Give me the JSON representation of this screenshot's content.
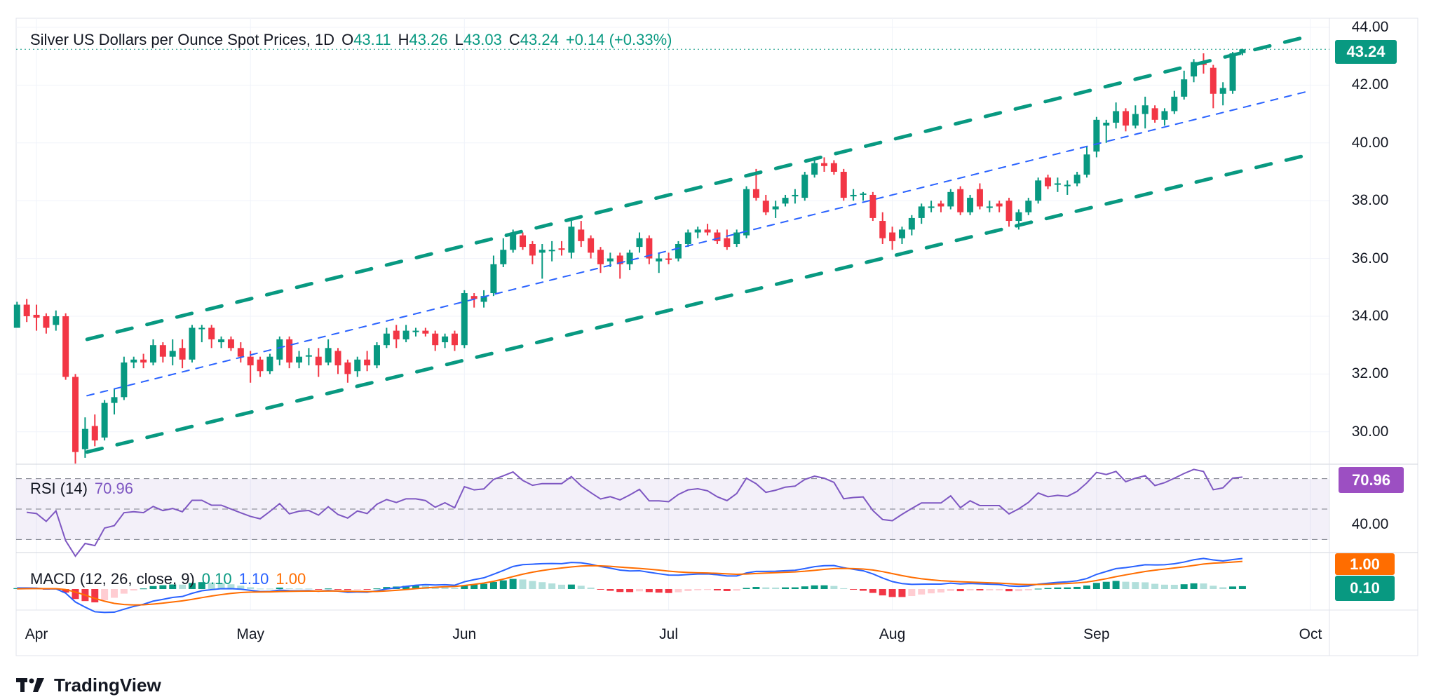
{
  "header": {
    "title": "Silver US Dollars per Ounce Spot Prices, 1D",
    "open_label": "O",
    "open": "43.11",
    "high_label": "H",
    "high": "43.26",
    "low_label": "L",
    "low": "43.03",
    "close_label": "C",
    "close": "43.24",
    "change": "+0.14 (+0.33%)"
  },
  "rsi_legend": {
    "label": "RSI (14)",
    "value": "70.96"
  },
  "macd_legend": {
    "label": "MACD (12, 26, close, 9)",
    "hist": "0.10",
    "macd": "1.10",
    "signal": "1.00"
  },
  "badges": {
    "price": "43.24",
    "rsi": "70.96",
    "signal": "1.00",
    "hist": "0.10"
  },
  "logo_text": "TradingView",
  "colors": {
    "up": "#089981",
    "down": "#f23645",
    "rsi": "#7e57c2",
    "rsi_badge": "#9c4fc2",
    "macd": "#2962ff",
    "signal": "#ff6d00",
    "channel": "#089981",
    "midline": "#2962ff"
  },
  "chart_data": {
    "type": "candlestick",
    "title": "Silver US Dollars per Ounce Spot Prices, 1D",
    "price_ticks": [
      "44.00",
      "42.00",
      "40.00",
      "38.00",
      "36.00",
      "34.00",
      "32.00",
      "30.00"
    ],
    "ylim": [
      29,
      44.5
    ],
    "grid": true,
    "rsi_tick": "40.00",
    "rsi_levels": [
      70,
      50,
      30
    ],
    "time_ticks": [
      {
        "label": "Apr",
        "bar": 2
      },
      {
        "label": "May",
        "bar": 24
      },
      {
        "label": "Jun",
        "bar": 46
      },
      {
        "label": "Jul",
        "bar": 67
      },
      {
        "label": "Aug",
        "bar": 90
      },
      {
        "label": "Sep",
        "bar": 111
      },
      {
        "label": "Oct",
        "bar": 133
      }
    ],
    "channel": {
      "upper": [
        [
          7.2,
          33.2
        ],
        [
          132.9,
          43.7
        ]
      ],
      "middle": [
        [
          7.2,
          31.25
        ],
        [
          132.9,
          41.8
        ]
      ],
      "lower": [
        [
          7.2,
          29.3
        ],
        [
          132.9,
          39.6
        ]
      ]
    },
    "ohlc_fields": [
      "open",
      "high",
      "low",
      "close"
    ],
    "candles": [
      [
        33.6,
        34.5,
        33.6,
        34.4
      ],
      [
        34.4,
        34.6,
        33.8,
        34.0
      ],
      [
        34.05,
        34.4,
        33.5,
        33.95
      ],
      [
        34.0,
        34.1,
        33.4,
        33.6
      ],
      [
        33.7,
        34.2,
        33.5,
        34.0
      ],
      [
        34.0,
        34.1,
        31.8,
        31.9
      ],
      [
        31.9,
        32.0,
        28.9,
        29.3
      ],
      [
        29.4,
        30.5,
        29.1,
        30.1
      ],
      [
        30.2,
        30.6,
        29.5,
        29.7
      ],
      [
        29.8,
        31.1,
        29.7,
        31.0
      ],
      [
        31.0,
        31.5,
        30.6,
        31.2
      ],
      [
        31.2,
        32.6,
        31.1,
        32.4
      ],
      [
        32.4,
        32.6,
        32.2,
        32.5
      ],
      [
        32.5,
        32.7,
        32.2,
        32.4
      ],
      [
        32.4,
        33.2,
        32.3,
        33.0
      ],
      [
        33.0,
        33.1,
        32.4,
        32.6
      ],
      [
        32.6,
        33.2,
        32.3,
        32.8
      ],
      [
        32.9,
        33.2,
        32.2,
        32.5
      ],
      [
        32.5,
        33.7,
        32.4,
        33.6
      ],
      [
        33.55,
        33.7,
        33.1,
        33.6
      ],
      [
        33.6,
        33.7,
        32.9,
        33.2
      ],
      [
        33.1,
        33.3,
        32.9,
        33.2
      ],
      [
        33.2,
        33.3,
        32.8,
        32.9
      ],
      [
        32.9,
        33.1,
        32.4,
        32.6
      ],
      [
        32.6,
        32.8,
        31.7,
        32.3
      ],
      [
        32.5,
        32.6,
        31.9,
        32.1
      ],
      [
        32.1,
        32.7,
        32.0,
        32.6
      ],
      [
        32.5,
        33.3,
        32.3,
        33.2
      ],
      [
        33.2,
        33.3,
        32.2,
        32.4
      ],
      [
        32.4,
        32.8,
        32.2,
        32.6
      ],
      [
        32.6,
        32.9,
        32.3,
        32.65
      ],
      [
        32.6,
        32.9,
        31.9,
        32.3
      ],
      [
        32.4,
        33.2,
        32.3,
        32.9
      ],
      [
        32.8,
        32.9,
        32.0,
        32.3
      ],
      [
        32.4,
        32.5,
        31.7,
        32.0
      ],
      [
        32.1,
        32.6,
        31.9,
        32.5
      ],
      [
        32.5,
        32.8,
        32.1,
        32.3
      ],
      [
        32.3,
        33.1,
        32.2,
        33.0
      ],
      [
        33.0,
        33.6,
        32.9,
        33.4
      ],
      [
        33.5,
        33.7,
        32.9,
        33.2
      ],
      [
        33.2,
        33.7,
        33.1,
        33.5
      ],
      [
        33.45,
        33.6,
        33.3,
        33.5
      ],
      [
        33.5,
        33.6,
        33.3,
        33.4
      ],
      [
        33.4,
        33.5,
        32.8,
        33.0
      ],
      [
        33.1,
        33.4,
        32.9,
        33.3
      ],
      [
        33.4,
        33.5,
        32.8,
        33.0
      ],
      [
        33.0,
        34.9,
        32.9,
        34.8
      ],
      [
        34.7,
        34.8,
        34.3,
        34.6
      ],
      [
        34.5,
        34.9,
        34.3,
        34.7
      ],
      [
        34.8,
        36.1,
        34.7,
        35.8
      ],
      [
        35.8,
        36.7,
        35.7,
        36.3
      ],
      [
        36.3,
        37.0,
        36.2,
        36.9
      ],
      [
        36.8,
        36.9,
        36.3,
        36.4
      ],
      [
        36.5,
        36.6,
        35.8,
        36.1
      ],
      [
        36.2,
        36.5,
        35.3,
        36.3
      ],
      [
        36.25,
        36.6,
        35.9,
        36.3
      ],
      [
        36.35,
        36.6,
        36.1,
        36.3
      ],
      [
        36.2,
        37.3,
        36.0,
        37.1
      ],
      [
        37.0,
        37.3,
        36.4,
        36.6
      ],
      [
        36.7,
        36.8,
        36.0,
        36.2
      ],
      [
        36.3,
        36.4,
        35.5,
        35.8
      ],
      [
        35.9,
        36.2,
        35.7,
        36.0
      ],
      [
        36.1,
        36.2,
        35.3,
        35.8
      ],
      [
        35.8,
        36.3,
        35.6,
        36.2
      ],
      [
        36.4,
        36.9,
        36.2,
        36.7
      ],
      [
        36.7,
        36.8,
        35.8,
        36.0
      ],
      [
        35.9,
        36.2,
        35.5,
        36.0
      ],
      [
        36.0,
        36.2,
        35.8,
        35.95
      ],
      [
        36.0,
        36.6,
        35.9,
        36.5
      ],
      [
        36.5,
        37.0,
        36.4,
        36.9
      ],
      [
        36.9,
        37.1,
        36.7,
        37.0
      ],
      [
        37.0,
        37.2,
        36.8,
        36.9
      ],
      [
        36.9,
        37.0,
        36.5,
        36.6
      ],
      [
        36.7,
        37.0,
        36.3,
        36.4
      ],
      [
        36.5,
        37.0,
        36.4,
        36.9
      ],
      [
        36.8,
        38.5,
        36.7,
        38.4
      ],
      [
        38.4,
        39.1,
        38.0,
        38.1
      ],
      [
        38.0,
        38.2,
        37.5,
        37.6
      ],
      [
        37.7,
        38.0,
        37.4,
        37.8
      ],
      [
        37.9,
        38.2,
        37.8,
        38.1
      ],
      [
        38.15,
        38.4,
        37.9,
        38.2
      ],
      [
        38.1,
        39.0,
        38.0,
        38.9
      ],
      [
        38.9,
        39.4,
        38.8,
        39.3
      ],
      [
        39.3,
        39.5,
        39.0,
        39.2
      ],
      [
        39.3,
        39.4,
        38.9,
        39.0
      ],
      [
        39.0,
        39.1,
        38.0,
        38.1
      ],
      [
        38.15,
        38.4,
        38.0,
        38.2
      ],
      [
        38.2,
        38.3,
        38.0,
        38.25
      ],
      [
        38.2,
        38.3,
        37.3,
        37.4
      ],
      [
        37.3,
        37.6,
        36.5,
        36.7
      ],
      [
        36.9,
        37.1,
        36.3,
        36.6
      ],
      [
        36.7,
        37.1,
        36.5,
        37.0
      ],
      [
        37.0,
        37.5,
        36.8,
        37.4
      ],
      [
        37.4,
        37.9,
        37.2,
        37.8
      ],
      [
        37.75,
        38.0,
        37.6,
        37.8
      ],
      [
        37.9,
        38.0,
        37.6,
        37.8
      ],
      [
        37.8,
        38.4,
        37.7,
        38.3
      ],
      [
        38.4,
        38.5,
        37.5,
        37.6
      ],
      [
        37.6,
        38.2,
        37.5,
        38.1
      ],
      [
        38.4,
        38.6,
        37.7,
        37.8
      ],
      [
        37.75,
        38.0,
        37.6,
        37.8
      ],
      [
        37.9,
        38.0,
        37.6,
        37.8
      ],
      [
        38.0,
        38.1,
        37.1,
        37.3
      ],
      [
        37.3,
        37.7,
        37.0,
        37.6
      ],
      [
        37.6,
        38.1,
        37.5,
        38.0
      ],
      [
        38.0,
        38.8,
        37.9,
        38.7
      ],
      [
        38.8,
        38.9,
        38.4,
        38.5
      ],
      [
        38.55,
        38.8,
        38.3,
        38.6
      ],
      [
        38.5,
        38.7,
        38.2,
        38.55
      ],
      [
        38.6,
        39.0,
        38.5,
        38.9
      ],
      [
        38.9,
        39.9,
        38.8,
        39.6
      ],
      [
        39.7,
        40.9,
        39.5,
        40.8
      ],
      [
        40.6,
        40.8,
        40.0,
        40.7
      ],
      [
        40.7,
        41.4,
        40.5,
        41.1
      ],
      [
        41.1,
        41.2,
        40.4,
        40.6
      ],
      [
        40.6,
        41.3,
        40.5,
        41.0
      ],
      [
        41.0,
        41.6,
        40.5,
        41.3
      ],
      [
        41.2,
        41.3,
        40.7,
        40.8
      ],
      [
        40.8,
        41.2,
        40.6,
        41.1
      ],
      [
        41.1,
        41.8,
        41.0,
        41.6
      ],
      [
        41.6,
        42.5,
        41.5,
        42.2
      ],
      [
        42.3,
        42.9,
        42.1,
        42.8
      ],
      [
        42.75,
        43.1,
        42.4,
        42.7
      ],
      [
        42.6,
        42.7,
        41.2,
        41.7
      ],
      [
        41.7,
        42.1,
        41.3,
        41.9
      ],
      [
        41.8,
        43.15,
        41.7,
        43.1
      ],
      [
        43.11,
        43.26,
        43.03,
        43.24
      ]
    ],
    "last_price": 43.24
  }
}
